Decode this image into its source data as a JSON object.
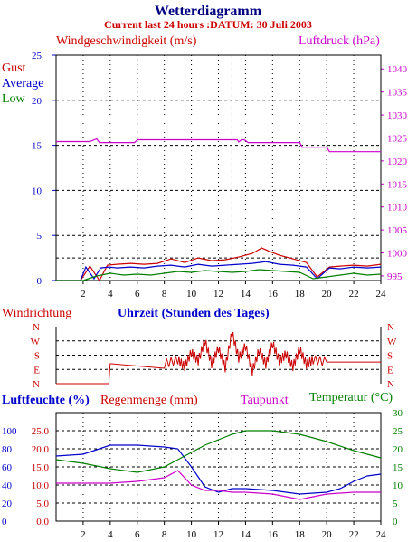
{
  "header": {
    "title": "Wetterdiagramm",
    "subtitle": "Current last 24 hours :DATUM: 30 Juli 2003"
  },
  "colors": {
    "title": "#000080",
    "red": "#cc0000",
    "blue": "#0000cc",
    "green": "#008000",
    "magenta": "#cc00cc",
    "axis": "#000000",
    "grid": "#000000"
  },
  "chart_data": [
    {
      "id": "wind-chart",
      "type": "line",
      "title": "Windgeschwindigkeit (m/s)",
      "right_title": "Luftdruck (hPa)",
      "legend": [
        "Gust",
        "Average",
        "Low"
      ],
      "x_ticks": [
        "2",
        "4",
        "6",
        "8",
        "10",
        "12",
        "14",
        "16",
        "18",
        "20",
        "22",
        "24"
      ],
      "y_left_ticks": [
        "0",
        "5",
        "10",
        "15",
        "20",
        "25"
      ],
      "y_right_ticks": [
        "995",
        "1000",
        "1005",
        "1010",
        "1015",
        "1020",
        "1025",
        "1030",
        "1035",
        "1040"
      ],
      "xlim": [
        0,
        24
      ],
      "ylim": [
        0,
        25
      ],
      "y2lim": [
        994,
        1043
      ],
      "series": [
        {
          "name": "Gust",
          "color": "#cc0000",
          "x": [
            0,
            1.8,
            2.5,
            3.2,
            3.8,
            4.5,
            5.5,
            6.5,
            7.5,
            8.5,
            9.5,
            10.5,
            11.5,
            12.5,
            13.5,
            14.5,
            15.2,
            15.8,
            16.5,
            17.5,
            18.5,
            19.3,
            20.2,
            21,
            22,
            23,
            24
          ],
          "y": [
            0,
            0,
            1.6,
            0,
            1.7,
            1.8,
            1.9,
            1.8,
            1.9,
            2.4,
            2.0,
            2.5,
            2.2,
            2.3,
            2.6,
            3.0,
            3.6,
            3.2,
            2.8,
            2.4,
            2.0,
            0.4,
            1.5,
            1.6,
            1.7,
            1.6,
            1.8
          ]
        },
        {
          "name": "Average",
          "color": "#0000cc",
          "x": [
            0,
            1.8,
            2.2,
            2.8,
            3.3,
            3.9,
            4.5,
            5.5,
            6.5,
            7.5,
            8.5,
            9.5,
            10.5,
            11.5,
            12.5,
            13.5,
            14.5,
            15.5,
            16.5,
            17.5,
            18.5,
            19.3,
            20.2,
            21,
            22,
            23,
            24
          ],
          "y": [
            0,
            0,
            1.5,
            0.2,
            1.4,
            1.5,
            1.4,
            1.5,
            1.4,
            1.6,
            1.7,
            1.5,
            1.8,
            1.6,
            1.7,
            1.8,
            1.9,
            2.1,
            1.8,
            1.7,
            1.5,
            0.2,
            1.4,
            1.3,
            1.5,
            1.4,
            1.5
          ]
        },
        {
          "name": "Low",
          "color": "#008000",
          "x": [
            0,
            2,
            3,
            4,
            5,
            6,
            7,
            8,
            9,
            10,
            11,
            12,
            13,
            14,
            15,
            16,
            17,
            18,
            19,
            20,
            21,
            22,
            23,
            24
          ],
          "y": [
            0,
            0,
            0.5,
            0.8,
            0.6,
            0.7,
            0.6,
            0.8,
            1.0,
            0.9,
            1.1,
            1.0,
            0.9,
            1.0,
            1.2,
            1.1,
            1.0,
            0.9,
            0.2,
            0.4,
            0.6,
            0.8,
            0.6,
            0.7
          ]
        },
        {
          "name": "Luftdruck",
          "color": "#cc00cc",
          "axis": "right",
          "x": [
            0,
            2.5,
            3.0,
            3.2,
            5.8,
            6.0,
            13.4,
            13.5,
            13.7,
            13.9,
            14.2,
            18.0,
            18.2,
            19.0,
            20.0,
            20.2,
            24
          ],
          "y": [
            1024.2,
            1024.2,
            1024.8,
            1024.0,
            1024.0,
            1024.6,
            1024.6,
            1024.1,
            1024.6,
            1024.6,
            1024.0,
            1024.0,
            1023.0,
            1023.0,
            1023.0,
            1022.0,
            1022.0
          ]
        }
      ]
    },
    {
      "id": "direction-chart",
      "type": "line",
      "title": "Windrichtung",
      "xlabel": "Uhrzeit (Stunden des Tages)",
      "y_ticks": [
        "N",
        "W",
        "S",
        "E",
        "N"
      ],
      "xlim": [
        0,
        24
      ],
      "series": [
        {
          "name": "Windrichtung",
          "color": "#cc0000",
          "x": [
            0,
            3.9,
            4.0,
            8.0,
            9.0,
            9.5,
            10.0,
            10.5,
            11.0,
            11.5,
            12.0,
            12.5,
            13.0,
            13.5,
            14.0,
            14.5,
            15.0,
            15.5,
            16.0,
            16.5,
            17.0,
            17.5,
            18.0,
            18.5,
            19.0,
            20.0,
            24
          ],
          "y": [
            0,
            0,
            0.35,
            0.35,
            0.42,
            0.3,
            0.55,
            0.4,
            0.75,
            0.35,
            0.62,
            0.28,
            0.9,
            0.45,
            0.66,
            0.22,
            0.58,
            0.34,
            0.7,
            0.4,
            0.52,
            0.3,
            0.6,
            0.34,
            0.42,
            0.38,
            0.38
          ]
        }
      ]
    },
    {
      "id": "humidity-chart",
      "type": "line",
      "titles": [
        "Luftfeuchte (%)",
        "Regenmenge (mm)",
        "Taupunkt",
        "Temperatur (°C)"
      ],
      "x_ticks": [
        "2",
        "4",
        "6",
        "8",
        "10",
        "12",
        "14",
        "16",
        "18",
        "20",
        "22",
        "24"
      ],
      "y_left_blue_ticks": [
        "0",
        "20",
        "40",
        "60",
        "80",
        "100"
      ],
      "y_left_red_ticks": [
        "0.0",
        "5.0",
        "10.0",
        "15.0",
        "20.0",
        "25.0"
      ],
      "y_right_ticks": [
        "0",
        "5",
        "10",
        "15",
        "20",
        "25",
        "30"
      ],
      "xlim": [
        0,
        24
      ],
      "ylim": [
        0,
        30
      ],
      "series": [
        {
          "name": "Luftfeuchte (%)",
          "color": "#0000cc",
          "x": [
            0,
            2,
            4,
            6,
            8,
            9,
            10,
            11,
            12,
            13,
            14,
            16,
            18,
            20,
            21,
            22,
            23,
            24
          ],
          "y": [
            18,
            18.5,
            21,
            21,
            20.5,
            20,
            15,
            9.5,
            8,
            9,
            9,
            8.5,
            7.5,
            8,
            9,
            11,
            12.5,
            13
          ]
        },
        {
          "name": "Temperatur (°C)",
          "color": "#008000",
          "x": [
            0,
            2,
            4,
            6,
            8,
            9,
            10,
            11,
            12,
            13,
            14,
            16,
            18,
            20,
            22,
            24
          ],
          "y": [
            17,
            16,
            14.5,
            13.5,
            15,
            17,
            19,
            21,
            22.5,
            24,
            25,
            25,
            24,
            22,
            19.5,
            17.5
          ]
        },
        {
          "name": "Taupunkt",
          "color": "#cc00cc",
          "x": [
            0,
            2,
            4,
            6,
            8,
            9,
            10,
            11,
            12,
            13,
            14,
            16,
            18,
            20,
            22,
            24
          ],
          "y": [
            10.5,
            10.5,
            10.5,
            11,
            12,
            14,
            10,
            8.5,
            8.5,
            8,
            8,
            7.5,
            6,
            7.5,
            8,
            8
          ]
        }
      ]
    }
  ]
}
